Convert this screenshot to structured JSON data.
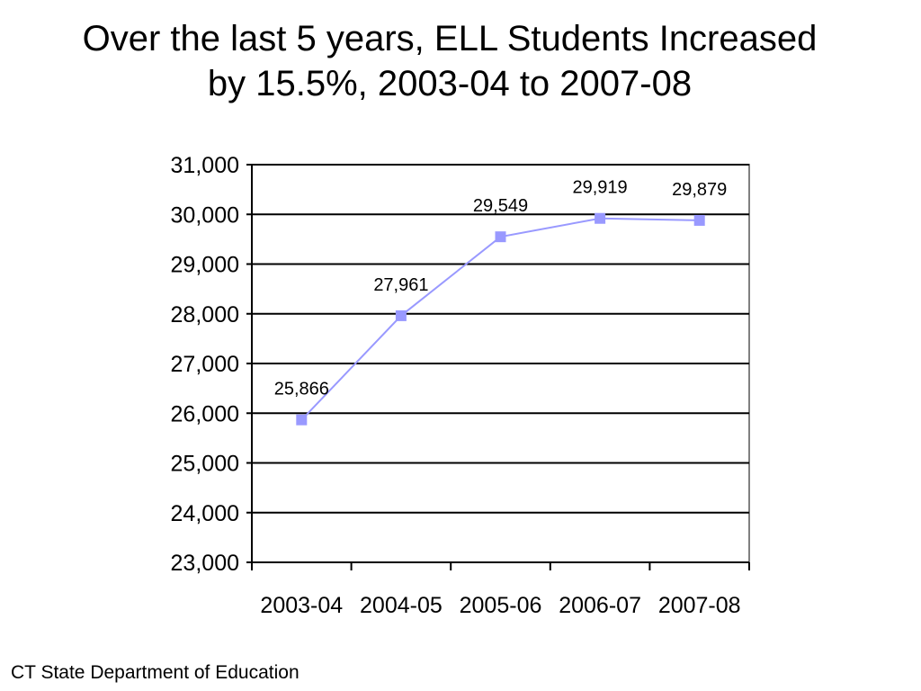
{
  "title": {
    "line1": "Over the last 5 years, ELL Students Increased",
    "line2": "by 15.5%, 2003-04 to 2007-08"
  },
  "source": "CT State Department of Education",
  "colors": {
    "series": "#9999ff",
    "gridline": "#000000",
    "plot_border": "#808080"
  },
  "chart_data": {
    "type": "line",
    "categories": [
      "2003-04",
      "2004-05",
      "2005-06",
      "2006-07",
      "2007-08"
    ],
    "series": [
      {
        "values": [
          25866,
          27961,
          29549,
          29919,
          29879
        ],
        "data_labels": [
          "25,866",
          "27,961",
          "29,549",
          "29,919",
          "29,879"
        ],
        "marker": "square"
      }
    ],
    "ylim": [
      23000,
      31000
    ],
    "yticks": [
      23000,
      24000,
      25000,
      26000,
      27000,
      28000,
      29000,
      30000,
      31000
    ],
    "ytick_labels": [
      "23,000",
      "24,000",
      "25,000",
      "26,000",
      "27,000",
      "28,000",
      "29,000",
      "30,000",
      "31,000"
    ],
    "grid": true,
    "legend": "none",
    "xlabel": "",
    "ylabel": ""
  }
}
